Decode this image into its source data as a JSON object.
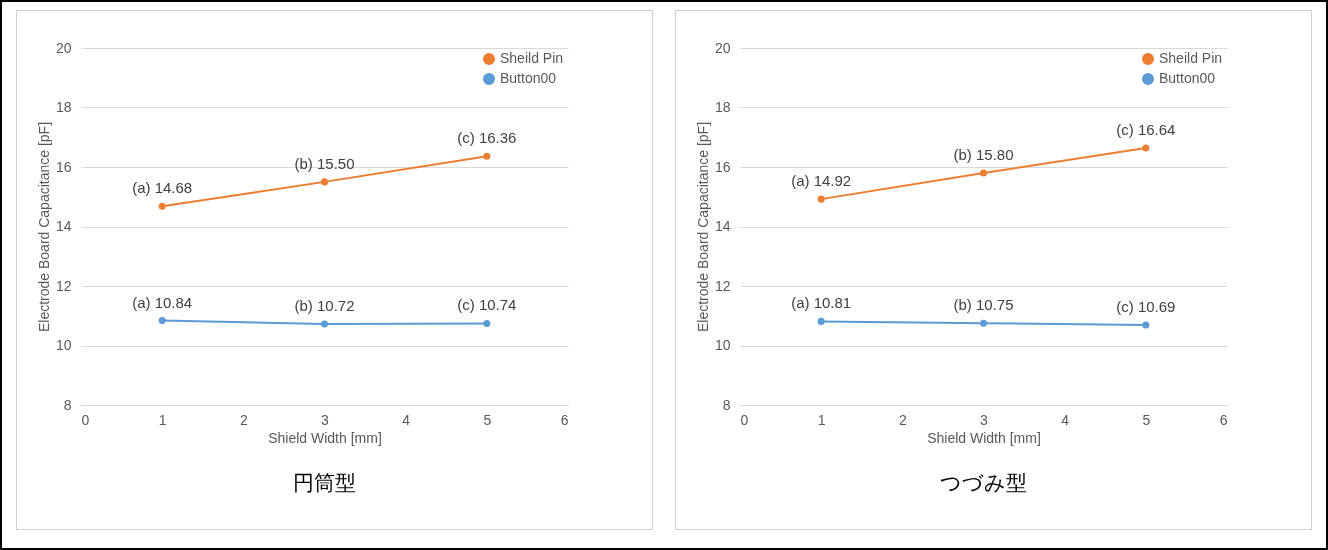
{
  "chart_data": [
    {
      "type": "line",
      "title": "円筒型",
      "xlabel": "Shield Width [mm]",
      "ylabel": "Electrode Board Capacitance [pF]",
      "x": [
        1,
        3,
        5
      ],
      "xlim": [
        0,
        6
      ],
      "xticks": [
        0,
        1,
        2,
        3,
        4,
        5,
        6
      ],
      "ylim": [
        8,
        20
      ],
      "yticks": [
        8,
        10,
        12,
        14,
        16,
        18,
        20
      ],
      "grid": "y",
      "legend": "top right",
      "marker": "circle",
      "series": [
        {
          "name": "Sheild Pin",
          "color": "#ed7d31",
          "values": [
            14.68,
            15.5,
            16.36
          ],
          "value_labels": [
            "(a) 14.68",
            "(b) 15.50",
            "(c)  16.36"
          ]
        },
        {
          "name": "Button00",
          "color": "#5b9bd5",
          "values": [
            10.84,
            10.72,
            10.74
          ],
          "value_labels": [
            "(a) 10.84",
            "(b) 10.72",
            "(c)  10.74"
          ]
        }
      ]
    },
    {
      "type": "line",
      "title": "つづみ型",
      "xlabel": "Shield Width [mm]",
      "ylabel": "Electrode Board Capacitance [pF]",
      "x": [
        1,
        3,
        5
      ],
      "xlim": [
        0,
        6
      ],
      "xticks": [
        0,
        1,
        2,
        3,
        4,
        5,
        6
      ],
      "ylim": [
        8,
        20
      ],
      "yticks": [
        8,
        10,
        12,
        14,
        16,
        18,
        20
      ],
      "grid": "y",
      "legend": "top right",
      "marker": "circle",
      "series": [
        {
          "name": "Sheild Pin",
          "color": "#ed7d31",
          "values": [
            14.92,
            15.8,
            16.64
          ],
          "value_labels": [
            "(a) 14.92",
            "(b) 15.80",
            "(c) 16.64"
          ]
        },
        {
          "name": "Button00",
          "color": "#5b9bd5",
          "values": [
            10.81,
            10.75,
            10.69
          ],
          "value_labels": [
            "(a) 10.81",
            "(b) 10.75",
            "(c) 10.69"
          ]
        }
      ]
    }
  ]
}
